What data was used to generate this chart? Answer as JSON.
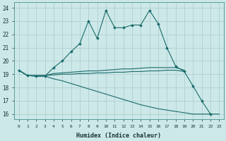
{
  "xlabel": "Humidex (Indice chaleur)",
  "background_color": "#cde8e8",
  "grid_color": "#b0cfcf",
  "line_color": "#1a6b6b",
  "xlim": [
    -0.5,
    23.5
  ],
  "ylim": [
    15.6,
    24.4
  ],
  "yticks": [
    16,
    17,
    18,
    19,
    20,
    21,
    22,
    23,
    24
  ],
  "xticks": [
    0,
    1,
    2,
    3,
    4,
    5,
    6,
    7,
    8,
    9,
    10,
    11,
    12,
    13,
    14,
    15,
    16,
    17,
    18,
    19,
    20,
    21,
    22,
    23
  ],
  "line1_x": [
    0,
    1,
    2,
    3,
    4,
    5,
    6,
    7,
    8,
    9,
    10,
    11,
    12,
    13,
    14,
    15,
    16,
    17,
    18,
    19,
    20,
    21,
    22
  ],
  "line1_y": [
    19.3,
    18.9,
    18.85,
    18.85,
    19.5,
    20.0,
    20.7,
    21.3,
    23.0,
    21.7,
    23.8,
    22.5,
    22.5,
    22.7,
    22.7,
    23.8,
    22.8,
    21.0,
    19.6,
    19.2,
    18.1,
    17.0,
    16.0
  ],
  "line2_x": [
    0,
    1,
    2,
    3,
    4,
    5,
    6,
    7,
    8,
    9,
    10,
    11,
    12,
    13,
    14,
    15,
    16,
    17,
    18,
    19
  ],
  "line2_y": [
    19.3,
    18.9,
    18.9,
    18.9,
    19.05,
    19.1,
    19.15,
    19.2,
    19.25,
    19.25,
    19.3,
    19.35,
    19.4,
    19.4,
    19.45,
    19.5,
    19.5,
    19.5,
    19.5,
    19.3
  ],
  "line3_x": [
    0,
    1,
    2,
    3,
    4,
    5,
    6,
    7,
    8,
    9,
    10,
    11,
    12,
    13,
    14,
    15,
    16,
    17,
    18,
    19
  ],
  "line3_y": [
    19.3,
    18.9,
    18.9,
    18.9,
    18.95,
    19.0,
    19.0,
    19.05,
    19.05,
    19.1,
    19.1,
    19.15,
    19.15,
    19.2,
    19.2,
    19.25,
    19.25,
    19.3,
    19.3,
    19.2
  ],
  "line4_x": [
    0,
    1,
    2,
    3,
    4,
    5,
    6,
    7,
    8,
    9,
    10,
    11,
    12,
    13,
    14,
    15,
    16,
    17,
    18,
    19,
    20,
    21,
    22,
    23
  ],
  "line4_y": [
    19.3,
    18.9,
    18.85,
    18.85,
    18.65,
    18.5,
    18.3,
    18.1,
    17.9,
    17.7,
    17.5,
    17.3,
    17.1,
    16.9,
    16.7,
    16.55,
    16.4,
    16.3,
    16.2,
    16.1,
    16.0,
    16.0,
    16.0,
    16.0
  ]
}
